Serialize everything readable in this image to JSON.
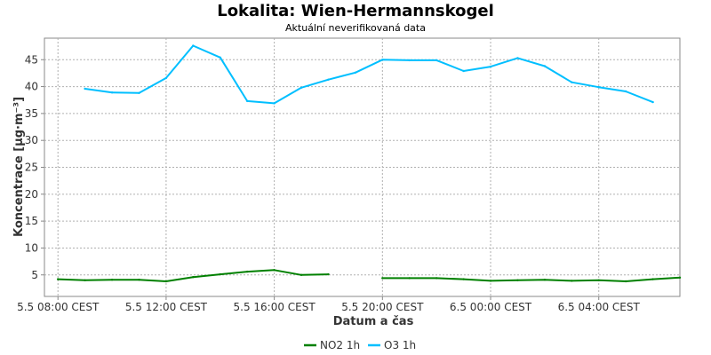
{
  "chart_data": {
    "type": "line",
    "title": "Lokalita: Wien-Hermannskogel",
    "subtitle": "Aktuální neverifikovaná data",
    "xlabel": "Datum a čas",
    "ylabel": "Koncentrace [µg·m⁻³]",
    "x_tick_labels": [
      "5.5 08:00 CEST",
      "5.5 12:00 CEST",
      "5.5 16:00 CEST",
      "5.5 20:00 CEST",
      "6.5 00:00 CEST",
      "6.5 04:00 CEST"
    ],
    "x_range_hours": [
      7.5,
      31
    ],
    "ylim": [
      1,
      49
    ],
    "y_ticks": [
      5,
      10,
      15,
      20,
      25,
      30,
      35,
      40,
      45
    ],
    "grid": true,
    "legend_position": "bottom",
    "series": [
      {
        "name": "NO2 1h",
        "color": "#008000",
        "points": [
          [
            8,
            4.2
          ],
          [
            9,
            4.0
          ],
          [
            10,
            4.1
          ],
          [
            11,
            4.1
          ],
          [
            12,
            3.8
          ],
          [
            13,
            4.6
          ],
          [
            14,
            5.1
          ],
          [
            15,
            5.6
          ],
          [
            16,
            5.9
          ],
          [
            17,
            5.0
          ],
          [
            18,
            5.1
          ],
          null,
          [
            20,
            4.4
          ],
          [
            21,
            4.4
          ],
          [
            22,
            4.4
          ],
          [
            23,
            4.2
          ],
          [
            24,
            3.9
          ],
          [
            25,
            4.0
          ],
          [
            26,
            4.1
          ],
          [
            27,
            3.9
          ],
          [
            28,
            4.0
          ],
          [
            29,
            3.8
          ],
          [
            30,
            4.2
          ],
          [
            31,
            4.5
          ]
        ]
      },
      {
        "name": "O3 1h",
        "color": "#00bfff",
        "points": [
          [
            9,
            39.6
          ],
          [
            10,
            38.9
          ],
          [
            11,
            38.8
          ],
          [
            12,
            41.6
          ],
          [
            13,
            47.6
          ],
          [
            14,
            45.4
          ],
          [
            15,
            37.3
          ],
          [
            16,
            36.9
          ],
          [
            17,
            39.8
          ],
          [
            18,
            41.3
          ],
          [
            19,
            42.6
          ],
          [
            20,
            45.0
          ],
          [
            21,
            44.9
          ],
          [
            22,
            44.9
          ],
          [
            23,
            42.9
          ],
          [
            24,
            43.7
          ],
          [
            25,
            45.3
          ],
          [
            26,
            43.8
          ],
          [
            27,
            40.8
          ],
          [
            28,
            39.9
          ],
          [
            29,
            39.1
          ],
          [
            30,
            37.1
          ]
        ]
      }
    ]
  }
}
